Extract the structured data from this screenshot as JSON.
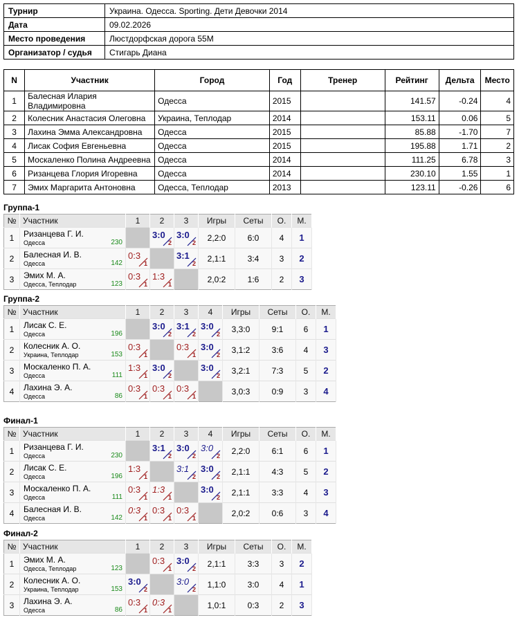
{
  "info": [
    {
      "key": "Турнир",
      "value": "Украина. Одесса. Sporting. Дети Девочки 2014"
    },
    {
      "key": "Дата",
      "value": "09.02.2026"
    },
    {
      "key": "Место проведения",
      "value": "Люстдорфская дорога 55М"
    },
    {
      "key": "Организатор / судья",
      "value": "Стигарь Диана"
    }
  ],
  "players": {
    "headers": [
      "N",
      "Участник",
      "Город",
      "Год",
      "Тренер",
      "Рейтинг",
      "Дельта",
      "Место"
    ],
    "rows": [
      [
        "1",
        "Балесная Илария Владимировна",
        "Одесса",
        "2015",
        "",
        "141.57",
        "-0.24",
        "4"
      ],
      [
        "2",
        "Колесник Анастасия Олеговна",
        "Украина, Теплодар",
        "2014",
        "",
        "153.11",
        "0.06",
        "5"
      ],
      [
        "3",
        "Лахина Эмма Александровна",
        "Одесса",
        "2015",
        "",
        "85.88",
        "-1.70",
        "7"
      ],
      [
        "4",
        "Лисак София Евгеньевна",
        "Одесса",
        "2015",
        "",
        "195.88",
        "1.71",
        "2"
      ],
      [
        "5",
        "Москаленко Полина Андреевна",
        "Одесса",
        "2014",
        "",
        "111.25",
        "6.78",
        "3"
      ],
      [
        "6",
        "Ризанцева Глория Игоревна",
        "Одесса",
        "2014",
        "",
        "230.10",
        "1.55",
        "1"
      ],
      [
        "7",
        "Эмих Маргарита Антоновна",
        "Одесса, Теплодар",
        "2013",
        "",
        "123.11",
        "-0.26",
        "6"
      ]
    ]
  },
  "groups": [
    {
      "title": "Группа-1",
      "headers": [
        "№",
        "Участник",
        "1",
        "2",
        "3",
        "Игры",
        "Сеты",
        "О.",
        "М."
      ],
      "rows": [
        {
          "n": "1",
          "name": "Ризанцева Г. И.",
          "city": "Одесса",
          "rating": "230",
          "cells": [
            null,
            {
              "s": "3:0",
              "w": "2",
              "t": "win"
            },
            {
              "s": "3:0",
              "w": "2",
              "t": "win"
            }
          ],
          "games": "2,2:0",
          "sets": "6:0",
          "o": "4",
          "m": "1"
        },
        {
          "n": "2",
          "name": "Балесная И. В.",
          "city": "Одесса",
          "rating": "142",
          "cells": [
            {
              "s": "0:3",
              "w": "1",
              "t": "loss"
            },
            null,
            {
              "s": "3:1",
              "w": "2",
              "t": "win"
            }
          ],
          "games": "2,1:1",
          "sets": "3:4",
          "o": "3",
          "m": "2"
        },
        {
          "n": "3",
          "name": "Эмих М. А.",
          "city": "Одесса, Теплодар",
          "rating": "123",
          "cells": [
            {
              "s": "0:3",
              "w": "1",
              "t": "loss"
            },
            {
              "s": "1:3",
              "w": "1",
              "t": "loss"
            },
            null
          ],
          "games": "2,0:2",
          "sets": "1:6",
          "o": "2",
          "m": "3"
        }
      ]
    },
    {
      "title": "Группа-2",
      "headers": [
        "№",
        "Участник",
        "1",
        "2",
        "3",
        "4",
        "Игры",
        "Сеты",
        "О.",
        "М."
      ],
      "rows": [
        {
          "n": "1",
          "name": "Лисак С. Е.",
          "city": "Одесса",
          "rating": "196",
          "cells": [
            null,
            {
              "s": "3:0",
              "w": "2",
              "t": "win"
            },
            {
              "s": "3:1",
              "w": "2",
              "t": "win"
            },
            {
              "s": "3:0",
              "w": "2",
              "t": "win"
            }
          ],
          "games": "3,3:0",
          "sets": "9:1",
          "o": "6",
          "m": "1"
        },
        {
          "n": "2",
          "name": "Колесник А. О.",
          "city": "Украина, Теплодар",
          "rating": "153",
          "cells": [
            {
              "s": "0:3",
              "w": "1",
              "t": "loss"
            },
            null,
            {
              "s": "0:3",
              "w": "1",
              "t": "loss"
            },
            {
              "s": "3:0",
              "w": "2",
              "t": "win"
            }
          ],
          "games": "3,1:2",
          "sets": "3:6",
          "o": "4",
          "m": "3"
        },
        {
          "n": "3",
          "name": "Москаленко П. А.",
          "city": "Одесса",
          "rating": "111",
          "cells": [
            {
              "s": "1:3",
              "w": "1",
              "t": "loss"
            },
            {
              "s": "3:0",
              "w": "2",
              "t": "win"
            },
            null,
            {
              "s": "3:0",
              "w": "2",
              "t": "win"
            }
          ],
          "games": "3,2:1",
          "sets": "7:3",
          "o": "5",
          "m": "2"
        },
        {
          "n": "4",
          "name": "Лахина Э. А.",
          "city": "Одесса",
          "rating": "86",
          "cells": [
            {
              "s": "0:3",
              "w": "1",
              "t": "loss"
            },
            {
              "s": "0:3",
              "w": "1",
              "t": "loss"
            },
            {
              "s": "0:3",
              "w": "1",
              "t": "loss"
            },
            null
          ],
          "games": "3,0:3",
          "sets": "0:9",
          "o": "3",
          "m": "4"
        }
      ]
    },
    {
      "title": "Финал-1",
      "headers": [
        "№",
        "Участник",
        "1",
        "2",
        "3",
        "4",
        "Игры",
        "Сеты",
        "О.",
        "М."
      ],
      "rows": [
        {
          "n": "1",
          "name": "Ризанцева Г. И.",
          "city": "Одесса",
          "rating": "230",
          "cells": [
            null,
            {
              "s": "3:1",
              "w": "2",
              "t": "win"
            },
            {
              "s": "3:0",
              "w": "2",
              "t": "win"
            },
            {
              "s": "3:0",
              "w": "2",
              "t": "tw"
            }
          ],
          "games": "2,2:0",
          "sets": "6:1",
          "o": "6",
          "m": "1"
        },
        {
          "n": "2",
          "name": "Лисак С. Е.",
          "city": "Одесса",
          "rating": "196",
          "cells": [
            {
              "s": "1:3",
              "w": "1",
              "t": "loss"
            },
            null,
            {
              "s": "3:1",
              "w": "2",
              "t": "tw"
            },
            {
              "s": "3:0",
              "w": "2",
              "t": "win"
            }
          ],
          "games": "2,1:1",
          "sets": "4:3",
          "o": "5",
          "m": "2"
        },
        {
          "n": "3",
          "name": "Москаленко П. А.",
          "city": "Одесса",
          "rating": "111",
          "cells": [
            {
              "s": "0:3",
              "w": "1",
              "t": "loss"
            },
            {
              "s": "1:3",
              "w": "1",
              "t": "tl"
            },
            null,
            {
              "s": "3:0",
              "w": "2",
              "t": "win"
            }
          ],
          "games": "2,1:1",
          "sets": "3:3",
          "o": "4",
          "m": "3"
        },
        {
          "n": "4",
          "name": "Балесная И. В.",
          "city": "Одесса",
          "rating": "142",
          "cells": [
            {
              "s": "0:3",
              "w": "1",
              "t": "tl"
            },
            {
              "s": "0:3",
              "w": "1",
              "t": "loss"
            },
            {
              "s": "0:3",
              "w": "1",
              "t": "loss"
            },
            null
          ],
          "games": "2,0:2",
          "sets": "0:6",
          "o": "3",
          "m": "4"
        }
      ]
    },
    {
      "title": "Финал-2",
      "headers": [
        "№",
        "Участник",
        "1",
        "2",
        "3",
        "Игры",
        "Сеты",
        "О.",
        "М."
      ],
      "rows": [
        {
          "n": "1",
          "name": "Эмих М. А.",
          "city": "Одесса, Теплодар",
          "rating": "123",
          "cells": [
            null,
            {
              "s": "0:3",
              "w": "1",
              "t": "loss"
            },
            {
              "s": "3:0",
              "w": "2",
              "t": "win"
            }
          ],
          "games": "2,1:1",
          "sets": "3:3",
          "o": "3",
          "m": "2"
        },
        {
          "n": "2",
          "name": "Колесник А. О.",
          "city": "Украина, Теплодар",
          "rating": "153",
          "cells": [
            {
              "s": "3:0",
              "w": "2",
              "t": "win"
            },
            null,
            {
              "s": "3:0",
              "w": "2",
              "t": "tw"
            }
          ],
          "games": "1,1:0",
          "sets": "3:0",
          "o": "4",
          "m": "1"
        },
        {
          "n": "3",
          "name": "Лахина Э. А.",
          "city": "Одесса",
          "rating": "86",
          "cells": [
            {
              "s": "0:3",
              "w": "1",
              "t": "loss"
            },
            {
              "s": "0:3",
              "w": "1",
              "t": "tl"
            },
            null
          ],
          "games": "1,0:1",
          "sets": "0:3",
          "o": "2",
          "m": "3"
        }
      ]
    }
  ]
}
